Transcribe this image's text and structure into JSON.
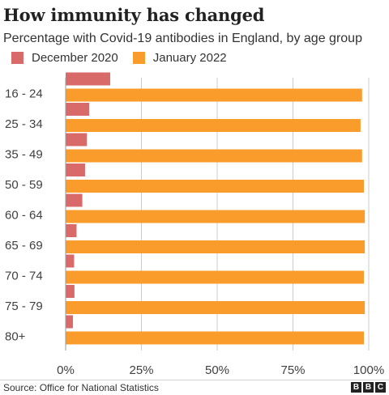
{
  "title": "How immunity has changed",
  "subtitle": "Percentage with Covid-19 antibodies in England, by age group",
  "source": "Source: Office for National Statistics",
  "logo": [
    "B",
    "B",
    "C"
  ],
  "colors": {
    "december_2020": "#d96a6a",
    "january_2022": "#f99c2b",
    "grid": "#cccccc",
    "text": "#404040"
  },
  "chart_data": {
    "type": "bar",
    "orientation": "horizontal",
    "categories": [
      "16 - 24",
      "25 - 34",
      "35 - 49",
      "50 - 59",
      "60 - 64",
      "65 - 69",
      "70 - 74",
      "75 - 79",
      "80+"
    ],
    "series": [
      {
        "name": "December 2020",
        "values": [
          14.7,
          7.8,
          7.0,
          6.4,
          5.5,
          3.6,
          2.8,
          2.9,
          2.4
        ]
      },
      {
        "name": "January 2022",
        "values": [
          97.8,
          97.3,
          97.8,
          98.4,
          98.7,
          98.7,
          98.4,
          98.7,
          98.4
        ]
      }
    ],
    "xlim": [
      0,
      100
    ],
    "xticks": [
      "0%",
      "25%",
      "50%",
      "75%",
      "100%"
    ],
    "grid": true,
    "legend": "top-left"
  }
}
